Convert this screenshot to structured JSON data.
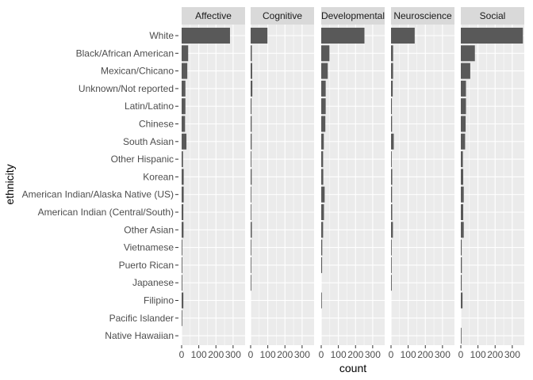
{
  "chart_data": {
    "type": "bar",
    "orientation": "horizontal",
    "faceted": true,
    "xlabel": "count",
    "ylabel": "ethnicity",
    "xlim": [
      0,
      370
    ],
    "xticks": [
      0,
      100,
      200,
      300
    ],
    "xtick_labels": [
      "0",
      "100",
      "200",
      "300"
    ],
    "grid": true,
    "categories": [
      "White",
      "Black/African American",
      "Mexican/Chicano",
      "Unknown/Not reported",
      "Latin/Latino",
      "Chinese",
      "South Asian",
      "Other Hispanic",
      "Korean",
      "American Indian/Alaska Native (US)",
      "American Indian (Central/South)",
      "Other Asian",
      "Vietnamese",
      "Puerto Rican",
      "Japanese",
      "Filipino",
      "Pacific Islander",
      "Native Hawaiian"
    ],
    "facets": [
      {
        "name": "Affective",
        "values": [
          282,
          38,
          33,
          22,
          22,
          20,
          28,
          8,
          12,
          12,
          10,
          11,
          4,
          4,
          4,
          10,
          1,
          0
        ]
      },
      {
        "name": "Cognitive",
        "values": [
          98,
          7,
          9,
          10,
          5,
          6,
          6,
          4,
          6,
          3,
          3,
          7,
          2,
          1,
          1,
          0,
          0,
          0
        ]
      },
      {
        "name": "Developmental",
        "values": [
          252,
          48,
          38,
          26,
          26,
          24,
          15,
          11,
          12,
          20,
          16,
          11,
          6,
          5,
          0,
          3,
          0,
          0
        ]
      },
      {
        "name": "Neuroscience",
        "values": [
          138,
          12,
          12,
          10,
          5,
          6,
          16,
          4,
          7,
          6,
          7,
          11,
          2,
          2,
          4,
          0,
          0,
          0
        ]
      },
      {
        "name": "Social",
        "values": [
          362,
          82,
          55,
          30,
          30,
          28,
          25,
          12,
          14,
          17,
          14,
          17,
          5,
          6,
          5,
          10,
          0,
          3
        ]
      }
    ],
    "colors": {
      "bar": "#595959",
      "panel_bg": "#ebebeb",
      "grid": "#ffffff",
      "strip_bg": "#d9d9d9"
    }
  }
}
